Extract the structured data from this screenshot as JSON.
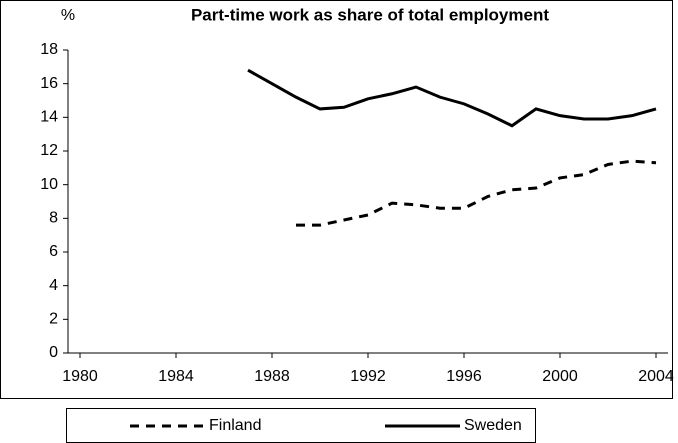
{
  "chart_data": {
    "type": "line",
    "title": "Part-time work as share of total employment",
    "y_label": "%",
    "x": [
      1987,
      1988,
      1989,
      1990,
      1991,
      1992,
      1993,
      1994,
      1995,
      1996,
      1997,
      1998,
      1999,
      2000,
      2001,
      2002,
      2003,
      2004
    ],
    "series": [
      {
        "name": "Finland",
        "color": "#000000",
        "dash": "dashed",
        "values": [
          null,
          null,
          7.6,
          7.6,
          7.9,
          8.2,
          8.9,
          8.8,
          8.6,
          8.6,
          9.3,
          9.7,
          9.8,
          10.4,
          10.6,
          11.2,
          11.4,
          11.3
        ]
      },
      {
        "name": "Sweden",
        "color": "#000000",
        "dash": "solid",
        "values": [
          16.8,
          16.0,
          15.2,
          14.5,
          14.6,
          15.1,
          15.4,
          15.8,
          15.2,
          14.8,
          14.2,
          13.5,
          14.5,
          14.1,
          13.9,
          13.9,
          14.1,
          14.5
        ]
      }
    ],
    "xlim": [
      1979.5,
      2004.5
    ],
    "xticks": [
      1980,
      1984,
      1988,
      1992,
      1996,
      2000,
      2004
    ],
    "ylim": [
      0,
      18
    ],
    "yticks": [
      0,
      2,
      4,
      6,
      8,
      10,
      12,
      14,
      16,
      18
    ],
    "grid": false,
    "legend": "bottom"
  }
}
